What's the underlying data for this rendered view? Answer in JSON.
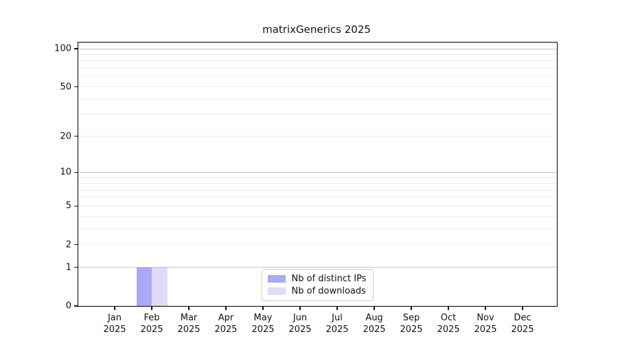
{
  "chart_data": {
    "type": "bar",
    "title": "matrixGenerics 2025",
    "categories": [
      {
        "month": "Jan",
        "year": "2025"
      },
      {
        "month": "Feb",
        "year": "2025"
      },
      {
        "month": "Mar",
        "year": "2025"
      },
      {
        "month": "Apr",
        "year": "2025"
      },
      {
        "month": "May",
        "year": "2025"
      },
      {
        "month": "Jun",
        "year": "2025"
      },
      {
        "month": "Jul",
        "year": "2025"
      },
      {
        "month": "Aug",
        "year": "2025"
      },
      {
        "month": "Sep",
        "year": "2025"
      },
      {
        "month": "Oct",
        "year": "2025"
      },
      {
        "month": "Nov",
        "year": "2025"
      },
      {
        "month": "Dec",
        "year": "2025"
      }
    ],
    "series": [
      {
        "name": "Nb of distinct IPs",
        "color": "#a9a9f5",
        "values": [
          0,
          1,
          0,
          0,
          0,
          0,
          0,
          0,
          0,
          0,
          0,
          0
        ]
      },
      {
        "name": "Nb of downloads",
        "color": "#dcdcf8",
        "values": [
          0,
          1,
          0,
          0,
          0,
          0,
          0,
          0,
          0,
          0,
          0,
          0
        ]
      }
    ],
    "y_axis": {
      "scale": "log1p",
      "ticks": [
        0,
        1,
        2,
        5,
        10,
        20,
        50,
        100
      ],
      "ylim": [
        0,
        111
      ],
      "major_grid": [
        1,
        10,
        100
      ],
      "minor_grid": [
        2,
        3,
        4,
        5,
        6,
        7,
        8,
        9,
        20,
        30,
        40,
        50,
        60,
        70,
        80,
        90
      ]
    },
    "legend": {
      "position": "lower center",
      "entries": [
        "Nb of distinct IPs",
        "Nb of downloads"
      ]
    },
    "colors": {
      "grid_major": "#c6c6c6",
      "grid_minor": "#ececec",
      "spine": "#000000"
    }
  }
}
